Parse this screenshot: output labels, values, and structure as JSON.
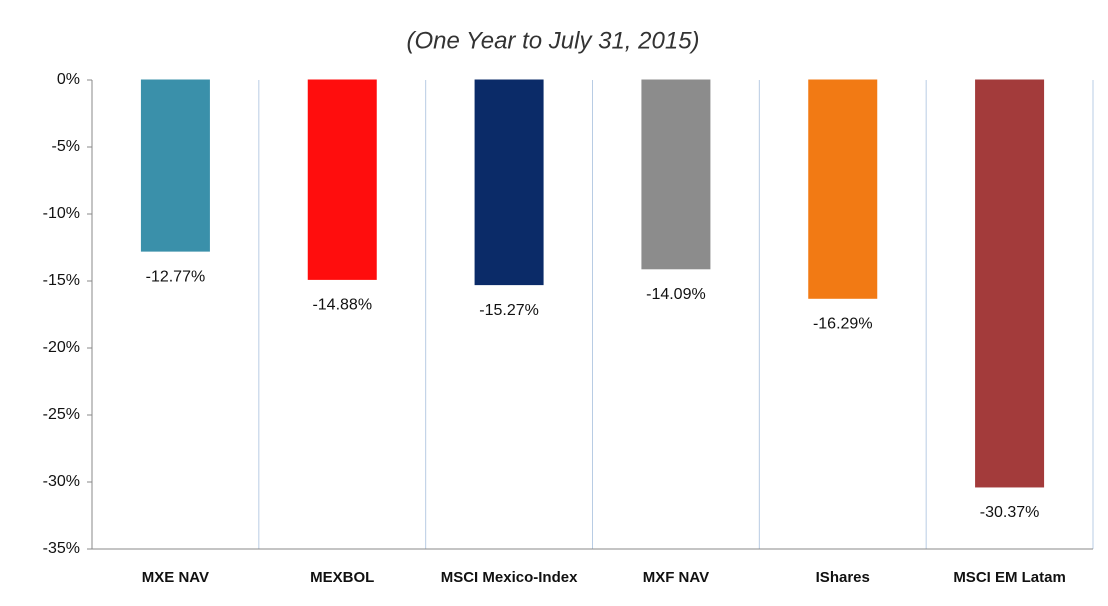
{
  "chart_data": {
    "type": "bar",
    "title": "(One Year to July 31, 2015)",
    "categories": [
      "MXE NAV",
      "MEXBOL",
      "MSCI Mexico-Index",
      "MXF NAV",
      "IShares",
      "MSCI EM Latam"
    ],
    "values": [
      -12.77,
      -14.88,
      -15.27,
      -14.09,
      -16.29,
      -30.37
    ],
    "value_labels": [
      "-12.77%",
      "-14.88%",
      "-15.27%",
      "-14.09%",
      "-16.29%",
      "-30.37%"
    ],
    "colors": [
      "#3a90aa",
      "#ff0d0d",
      "#0b2b68",
      "#8c8c8c",
      "#f27a14",
      "#a33b3b"
    ],
    "ylim": [
      -35,
      0
    ],
    "yticks": [
      {
        "value": 0,
        "label": "0%"
      },
      {
        "value": -5,
        "label": "-5%"
      },
      {
        "value": -10,
        "label": "-10%"
      },
      {
        "value": -15,
        "label": "-15%"
      },
      {
        "value": -20,
        "label": "-20%"
      },
      {
        "value": -25,
        "label": "-25%"
      },
      {
        "value": -30,
        "label": "-30%"
      },
      {
        "value": -35,
        "label": "-35%"
      }
    ]
  }
}
